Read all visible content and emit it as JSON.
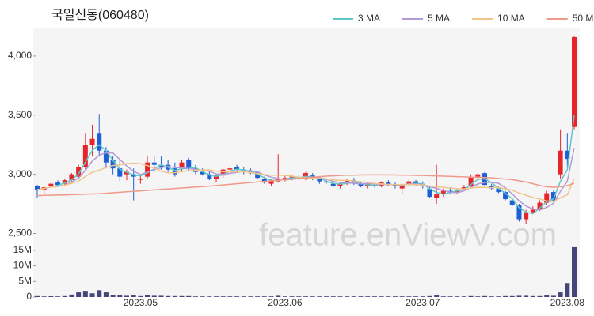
{
  "chart_data": {
    "type": "candlestick",
    "title": "국일신동(060480)",
    "watermark": "feature.enViewV.com",
    "legend": "top-right",
    "categories": [
      null,
      null,
      null,
      null,
      null,
      null,
      null,
      null,
      null,
      null,
      null,
      null,
      null,
      null,
      null,
      "2023.05",
      null,
      null,
      null,
      null,
      null,
      null,
      null,
      null,
      null,
      null,
      null,
      null,
      null,
      null,
      null,
      null,
      null,
      null,
      null,
      null,
      "2023.06",
      null,
      null,
      null,
      null,
      null,
      null,
      null,
      null,
      null,
      null,
      null,
      null,
      null,
      null,
      null,
      null,
      null,
      null,
      null,
      "2023.07",
      null,
      null,
      null,
      null,
      null,
      null,
      null,
      null,
      null,
      null,
      null,
      null,
      null,
      null,
      null,
      null,
      null,
      null,
      null,
      null,
      "2023.08",
      null
    ],
    "open": [
      2900,
      2870,
      2900,
      2930,
      2920,
      2950,
      2980,
      3060,
      3250,
      3350,
      3200,
      3120,
      3050,
      3000,
      3000,
      2960,
      2980,
      3100,
      3080,
      3080,
      3050,
      3050,
      3120,
      3050,
      3020,
      3000,
      2960,
      2990,
      3040,
      3060,
      3040,
      3030,
      3020,
      2960,
      2920,
      2940,
      2960,
      2960,
      2970,
      2960,
      2990,
      2960,
      2940,
      2920,
      2900,
      2920,
      2950,
      2920,
      2900,
      2910,
      2900,
      2930,
      2910,
      2880,
      2910,
      2940,
      2920,
      2880,
      2800,
      2830,
      2860,
      2850,
      2870,
      2900,
      2980,
      3010,
      2900,
      2880,
      2850,
      2780,
      2740,
      2620,
      2680,
      2700,
      2760,
      2850,
      3000,
      3200,
      3400
    ],
    "high": [
      2910,
      2900,
      2930,
      2950,
      2960,
      3010,
      3080,
      3350,
      3420,
      3510,
      3230,
      3150,
      3120,
      3040,
      3050,
      3000,
      3150,
      3150,
      3150,
      3120,
      3100,
      3120,
      3140,
      3080,
      3050,
      3030,
      3000,
      3050,
      3070,
      3080,
      3060,
      3050,
      3030,
      2980,
      2960,
      3170,
      2990,
      2990,
      3000,
      3020,
      3010,
      2970,
      2960,
      2940,
      2930,
      2960,
      2970,
      2940,
      2930,
      2930,
      2940,
      2950,
      2930,
      2920,
      2960,
      2950,
      2940,
      2900,
      3080,
      2880,
      2890,
      2880,
      2910,
      3000,
      3010,
      3020,
      2920,
      2900,
      2860,
      2790,
      2750,
      2700,
      2730,
      2780,
      2860,
      2870,
      3380,
      3350,
      4170
    ],
    "low": [
      2800,
      2830,
      2880,
      2900,
      2910,
      2940,
      2960,
      3040,
      3150,
      3150,
      3050,
      3000,
      2940,
      2950,
      2780,
      2920,
      2960,
      3050,
      3040,
      3020,
      2980,
      3030,
      3030,
      3000,
      2990,
      2950,
      2930,
      2970,
      3020,
      3030,
      3000,
      3000,
      2960,
      2920,
      2900,
      2930,
      2940,
      2950,
      2950,
      2950,
      2950,
      2920,
      2920,
      2890,
      2880,
      2910,
      2910,
      2890,
      2880,
      2890,
      2890,
      2900,
      2880,
      2830,
      2900,
      2900,
      2880,
      2800,
      2750,
      2810,
      2830,
      2830,
      2860,
      2890,
      2960,
      2900,
      2870,
      2840,
      2780,
      2730,
      2600,
      2580,
      2670,
      2690,
      2740,
      2760,
      2960,
      3050,
      3380
    ],
    "close": [
      2870,
      2890,
      2920,
      2910,
      2950,
      3000,
      3060,
      3250,
      3300,
      3200,
      3100,
      3050,
      2980,
      3020,
      2980,
      2960,
      3100,
      3080,
      3060,
      3040,
      3000,
      3100,
      3050,
      3020,
      3000,
      2960,
      2990,
      3040,
      3050,
      3040,
      3020,
      3010,
      2970,
      2930,
      2950,
      2960,
      2970,
      2980,
      2960,
      3010,
      2960,
      2940,
      2930,
      2900,
      2920,
      2950,
      2920,
      2900,
      2920,
      2900,
      2930,
      2910,
      2900,
      2910,
      2940,
      2920,
      2900,
      2810,
      2830,
      2860,
      2850,
      2870,
      2890,
      2980,
      3000,
      2910,
      2880,
      2850,
      2790,
      2740,
      2620,
      2680,
      2700,
      2760,
      2840,
      2780,
      3200,
      3130,
      4160
    ],
    "up_color": "#e8242b",
    "down_color": "#1f5fd6",
    "ylim": [
      2470,
      4240
    ],
    "yticks": [
      {
        "value": 2500,
        "label": "2,500"
      },
      {
        "value": 3000,
        "label": "3,000"
      },
      {
        "value": 3500,
        "label": "3,500"
      },
      {
        "value": 4000,
        "label": "4,000"
      }
    ],
    "series": [
      {
        "name": "3 MA",
        "color": "#5cc8c8",
        "values": [
          2870,
          2880,
          2893,
          2907,
          2927,
          2953,
          3003,
          3103,
          3203,
          3250,
          3200,
          3117,
          3043,
          3017,
          2993,
          2987,
          3013,
          3047,
          3080,
          3060,
          3033,
          3047,
          3050,
          3057,
          3023,
          2993,
          2983,
          2997,
          3027,
          3043,
          3037,
          3023,
          3000,
          2970,
          2950,
          2947,
          2960,
          2970,
          2970,
          2983,
          2977,
          2970,
          2943,
          2923,
          2917,
          2923,
          2930,
          2923,
          2913,
          2907,
          2917,
          2913,
          2913,
          2907,
          2917,
          2923,
          2920,
          2877,
          2847,
          2833,
          2847,
          2860,
          2870,
          2913,
          2957,
          2963,
          2930,
          2880,
          2840,
          2793,
          2717,
          2680,
          2667,
          2713,
          2767,
          2793,
          2940,
          3037,
          3497
        ]
      },
      {
        "name": "5 MA",
        "color": "#b39ad8",
        "values": [
          2870,
          2880,
          2893,
          2898,
          2908,
          2934,
          2968,
          3034,
          3112,
          3162,
          3182,
          3180,
          3126,
          3070,
          3026,
          2998,
          3018,
          3038,
          3056,
          3068,
          3056,
          3056,
          3050,
          3042,
          3034,
          3026,
          3004,
          3002,
          3008,
          3016,
          3028,
          3032,
          3018,
          2994,
          2976,
          2964,
          2952,
          2958,
          2964,
          2976,
          2972,
          2970,
          2960,
          2940,
          2930,
          2928,
          2924,
          2918,
          2922,
          2918,
          2914,
          2912,
          2912,
          2910,
          2918,
          2916,
          2914,
          2896,
          2880,
          2864,
          2850,
          2844,
          2860,
          2890,
          2918,
          2930,
          2932,
          2924,
          2886,
          2834,
          2776,
          2732,
          2706,
          2700,
          2720,
          2756,
          2856,
          2942,
          3222
        ]
      },
      {
        "name": "10 MA",
        "color": "#f2c48a",
        "values": [
          2870,
          2880,
          2893,
          2898,
          2908,
          2923,
          2943,
          2981,
          3017,
          3035,
          3058,
          3074,
          3080,
          3091,
          3094,
          3090,
          3074,
          3052,
          3028,
          3012,
          3014,
          3024,
          3031,
          3035,
          3037,
          3037,
          3026,
          3022,
          3021,
          3021,
          3023,
          3014,
          3006,
          2997,
          2992,
          2992,
          2990,
          2984,
          2975,
          2972,
          2966,
          2964,
          2960,
          2952,
          2949,
          2948,
          2944,
          2936,
          2932,
          2921,
          2918,
          2915,
          2912,
          2913,
          2915,
          2912,
          2910,
          2901,
          2894,
          2890,
          2882,
          2878,
          2877,
          2884,
          2890,
          2889,
          2887,
          2889,
          2877,
          2865,
          2842,
          2823,
          2804,
          2791,
          2776,
          2769,
          2802,
          2827,
          2964
        ]
      },
      {
        "name": "50 MA",
        "color": "#f0998a",
        "values": [
          2820,
          2822,
          2823,
          2825,
          2826,
          2828,
          2830,
          2832,
          2834,
          2836,
          2840,
          2844,
          2848,
          2852,
          2856,
          2860,
          2864,
          2868,
          2872,
          2876,
          2880,
          2884,
          2888,
          2892,
          2896,
          2900,
          2905,
          2910,
          2915,
          2920,
          2925,
          2930,
          2935,
          2940,
          2945,
          2950,
          2955,
          2960,
          2965,
          2970,
          2975,
          2980,
          2984,
          2987,
          2990,
          2992,
          2993,
          2994,
          2995,
          2995,
          2995,
          2995,
          2994,
          2993,
          2992,
          2991,
          2990,
          2988,
          2986,
          2984,
          2982,
          2980,
          2978,
          2976,
          2974,
          2972,
          2970,
          2965,
          2960,
          2955,
          2945,
          2935,
          2920,
          2905,
          2895,
          2890,
          2895,
          2905,
          2925
        ]
      }
    ],
    "volume": {
      "color": "#45457a",
      "values": [
        300000,
        200000,
        250000,
        200000,
        300000,
        800000,
        1500000,
        2000000,
        1200000,
        2200000,
        1500000,
        700000,
        500000,
        400000,
        500000,
        300000,
        600000,
        400000,
        400000,
        300000,
        300000,
        300000,
        300000,
        200000,
        200000,
        200000,
        200000,
        200000,
        200000,
        200000,
        200000,
        200000,
        200000,
        200000,
        200000,
        400000,
        200000,
        200000,
        200000,
        200000,
        200000,
        200000,
        200000,
        200000,
        200000,
        200000,
        200000,
        200000,
        200000,
        200000,
        200000,
        200000,
        200000,
        200000,
        200000,
        200000,
        200000,
        300000,
        500000,
        200000,
        200000,
        200000,
        200000,
        300000,
        200000,
        300000,
        200000,
        200000,
        300000,
        300000,
        400000,
        400000,
        300000,
        300000,
        500000,
        400000,
        1500000,
        4500000,
        16000000
      ],
      "ylim": [
        0,
        17500000
      ],
      "yticks": [
        {
          "value": 0,
          "label": "0"
        },
        {
          "value": 5000000,
          "label": "5M"
        },
        {
          "value": 10000000,
          "label": "10M"
        },
        {
          "value": 15000000,
          "label": "15M"
        }
      ]
    }
  }
}
